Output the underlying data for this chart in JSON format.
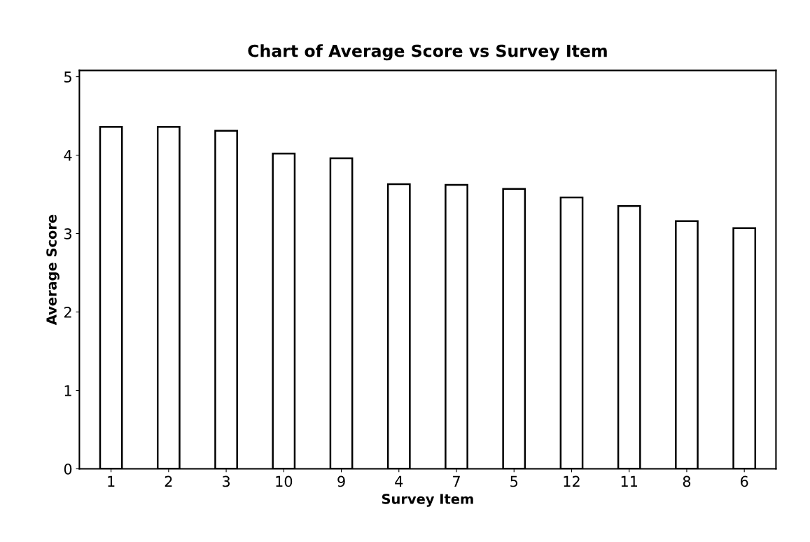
{
  "chart_data": {
    "type": "bar",
    "title": "Chart of Average Score vs Survey Item",
    "xlabel": "Survey Item",
    "ylabel": "Average Score",
    "categories": [
      "1",
      "2",
      "3",
      "10",
      "9",
      "4",
      "7",
      "5",
      "12",
      "11",
      "8",
      "6"
    ],
    "values": [
      4.36,
      4.36,
      4.31,
      4.02,
      3.96,
      3.63,
      3.62,
      3.57,
      3.46,
      3.35,
      3.16,
      3.07
    ],
    "color": "#ffffff",
    "ylim": [
      0,
      5.08
    ],
    "yticks": [
      0,
      1,
      2,
      3,
      4,
      5
    ],
    "grid": false
  }
}
